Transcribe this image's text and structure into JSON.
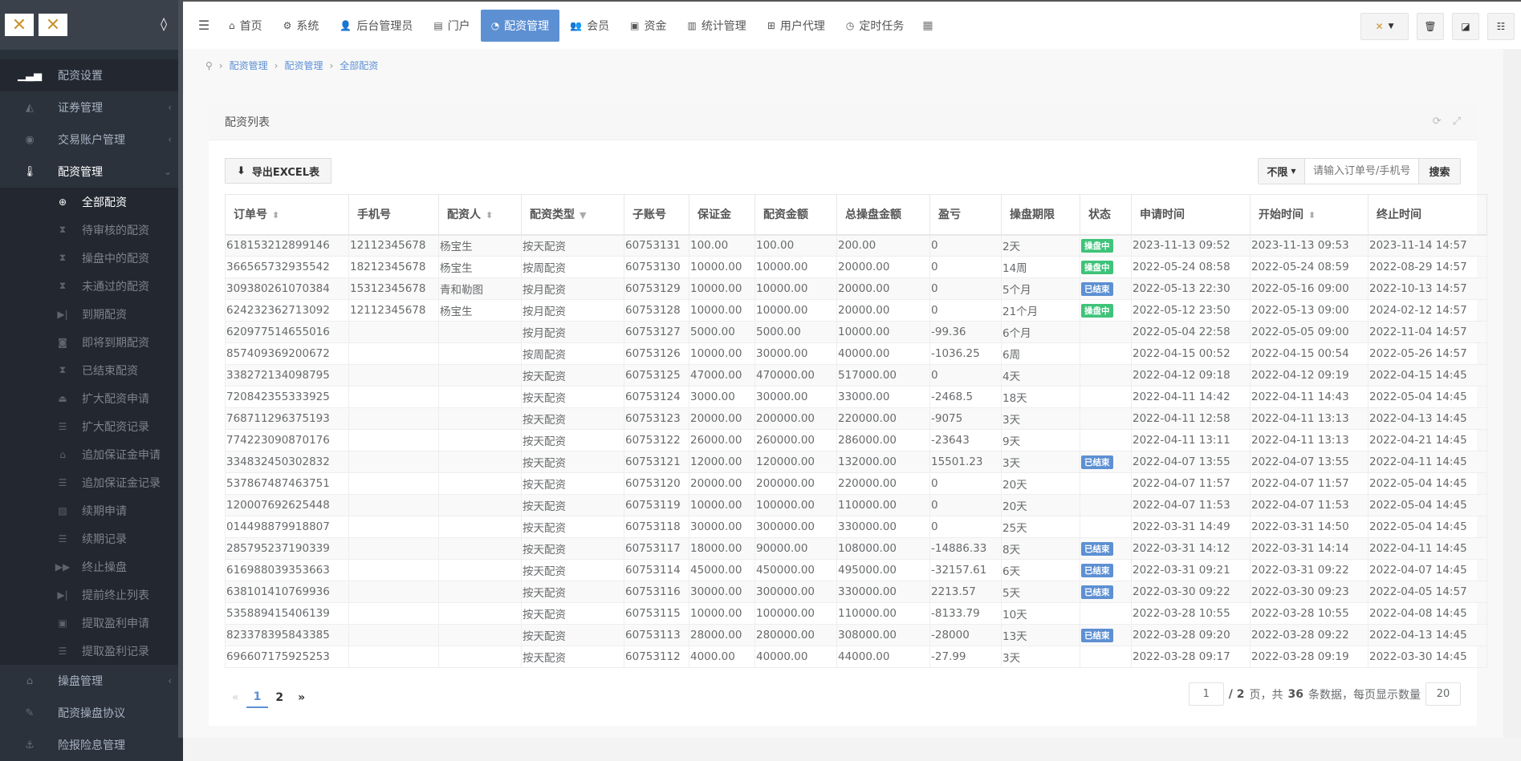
{
  "sidebar": {
    "top_items": [
      {
        "label": "配资设置",
        "icon": "signal-icon"
      },
      {
        "label": "证券管理",
        "icon": "area-chart-icon"
      },
      {
        "label": "交易账户管理",
        "icon": "user-circle-icon"
      },
      {
        "label": "配资管理",
        "icon": "thermometer-icon"
      }
    ],
    "sub_items": [
      {
        "label": "全部配资",
        "icon": "life-ring-icon"
      },
      {
        "label": "待审核的配资",
        "icon": "hourglass-icon"
      },
      {
        "label": "操盘中的配资",
        "icon": "hourglass-icon"
      },
      {
        "label": "未通过的配资",
        "icon": "hourglass-icon"
      },
      {
        "label": "到期配资",
        "icon": "step-forward-icon"
      },
      {
        "label": "即将到期配资",
        "icon": "camera-icon"
      },
      {
        "label": "已结束配资",
        "icon": "hourglass-icon"
      },
      {
        "label": "扩大配资申请",
        "icon": "upload-icon"
      },
      {
        "label": "扩大配资记录",
        "icon": "list-icon"
      },
      {
        "label": "追加保证金申请",
        "icon": "bank-icon"
      },
      {
        "label": "追加保证金记录",
        "icon": "list-icon"
      },
      {
        "label": "续期申请",
        "icon": "image-icon"
      },
      {
        "label": "续期记录",
        "icon": "list-icon"
      },
      {
        "label": "终止操盘",
        "icon": "fast-forward-icon"
      },
      {
        "label": "提前终止列表",
        "icon": "step-forward-icon"
      },
      {
        "label": "提取盈利申请",
        "icon": "save-icon"
      },
      {
        "label": "提取盈利记录",
        "icon": "list-icon"
      }
    ],
    "bottom_items": [
      {
        "label": "操盘管理",
        "icon": "bank-icon"
      },
      {
        "label": "配资操盘协议",
        "icon": "pencil-icon"
      },
      {
        "label": "险报险息管理",
        "icon": "anchor-icon"
      }
    ]
  },
  "topnav": [
    {
      "label": "首页",
      "icon": "home-icon"
    },
    {
      "label": "系统",
      "icon": "cog-icon"
    },
    {
      "label": "后台管理员",
      "icon": "user-icon"
    },
    {
      "label": "门户",
      "icon": "newspaper-icon"
    },
    {
      "label": "配资管理",
      "icon": "pie-chart-icon"
    },
    {
      "label": "会员",
      "icon": "users-icon"
    },
    {
      "label": "资金",
      "icon": "money-icon"
    },
    {
      "label": "统计管理",
      "icon": "bar-chart-icon"
    },
    {
      "label": "用户代理",
      "icon": "sitemap-icon"
    },
    {
      "label": "定时任务",
      "icon": "clock-icon"
    }
  ],
  "breadcrumb": [
    "配资管理",
    "配资管理",
    "全部配资"
  ],
  "panel": {
    "title": "配资列表",
    "export_label": "导出EXCEL表",
    "filter_value": "不限",
    "search_placeholder": "请输入订单号/手机号/",
    "search_label": "搜索"
  },
  "colors": {
    "accent": "#5d90d3",
    "running": "#3fc37a",
    "ended": "#5d90d3"
  },
  "table": {
    "columns": [
      "订单号",
      "手机号",
      "配资人",
      "配资类型",
      "子账号",
      "保证金",
      "配资金额",
      "总操盘金额",
      "盈亏",
      "操盘期限",
      "状态",
      "申请时间",
      "开始时间",
      "终止时间"
    ],
    "rows": [
      [
        "618153212899146",
        "12112345678",
        "杨宝生",
        "按天配资",
        "60753131",
        "100.00",
        "100.00",
        "200.00",
        "0",
        "2天",
        "操盘中",
        "2023-11-13 09:52",
        "2023-11-13 09:53",
        "2023-11-14 14:57"
      ],
      [
        "366565732935542",
        "18212345678",
        "杨宝生",
        "按周配资",
        "60753130",
        "10000.00",
        "10000.00",
        "20000.00",
        "0",
        "14周",
        "操盘中",
        "2022-05-24 08:58",
        "2022-05-24 08:59",
        "2022-08-29 14:57"
      ],
      [
        "309380261070384",
        "15312345678",
        "青和勒图",
        "按月配资",
        "60753129",
        "10000.00",
        "10000.00",
        "20000.00",
        "0",
        "5个月",
        "已结束",
        "2022-05-13 22:30",
        "2022-05-16 09:00",
        "2022-10-13 14:57"
      ],
      [
        "624232362713092",
        "12112345678",
        "杨宝生",
        "按月配资",
        "60753128",
        "10000.00",
        "10000.00",
        "20000.00",
        "0",
        "21个月",
        "操盘中",
        "2022-05-12 23:50",
        "2022-05-13 09:00",
        "2024-02-12 14:57"
      ],
      [
        "620977514655016",
        "",
        "",
        "按月配资",
        "60753127",
        "5000.00",
        "5000.00",
        "10000.00",
        "-99.36",
        "6个月",
        "",
        "2022-05-04 22:58",
        "2022-05-05 09:00",
        "2022-11-04 14:57"
      ],
      [
        "857409369200672",
        "",
        "",
        "按周配资",
        "60753126",
        "10000.00",
        "30000.00",
        "40000.00",
        "-1036.25",
        "6周",
        "",
        "2022-04-15 00:52",
        "2022-04-15 00:54",
        "2022-05-26 14:57"
      ],
      [
        "338272134098795",
        "",
        "",
        "按天配资",
        "60753125",
        "47000.00",
        "470000.00",
        "517000.00",
        "0",
        "4天",
        "",
        "2022-04-12 09:18",
        "2022-04-12 09:19",
        "2022-04-15 14:45"
      ],
      [
        "720842355333925",
        "",
        "",
        "按天配资",
        "60753124",
        "3000.00",
        "30000.00",
        "33000.00",
        "-2468.5",
        "18天",
        "",
        "2022-04-11 14:42",
        "2022-04-11 14:43",
        "2022-05-04 14:45"
      ],
      [
        "768711296375193",
        "",
        "",
        "按天配资",
        "60753123",
        "20000.00",
        "200000.00",
        "220000.00",
        "-9075",
        "3天",
        "",
        "2022-04-11 12:58",
        "2022-04-11 13:13",
        "2022-04-13 14:45"
      ],
      [
        "774223090870176",
        "",
        "",
        "按天配资",
        "60753122",
        "26000.00",
        "260000.00",
        "286000.00",
        "-23643",
        "9天",
        "",
        "2022-04-11 13:11",
        "2022-04-11 13:13",
        "2022-04-21 14:45"
      ],
      [
        "334832450302832",
        "",
        "",
        "按天配资",
        "60753121",
        "12000.00",
        "120000.00",
        "132000.00",
        "15501.23",
        "3天",
        "已结束",
        "2022-04-07 13:55",
        "2022-04-07 13:55",
        "2022-04-11 14:45"
      ],
      [
        "537867487463751",
        "",
        "",
        "按天配资",
        "60753120",
        "20000.00",
        "200000.00",
        "220000.00",
        "0",
        "20天",
        "",
        "2022-04-07 11:57",
        "2022-04-07 11:57",
        "2022-05-04 14:45"
      ],
      [
        "120007692625448",
        "",
        "",
        "按天配资",
        "60753119",
        "10000.00",
        "100000.00",
        "110000.00",
        "0",
        "20天",
        "",
        "2022-04-07 11:53",
        "2022-04-07 11:53",
        "2022-05-04 14:45"
      ],
      [
        "014498879918807",
        "",
        "",
        "按天配资",
        "60753118",
        "30000.00",
        "300000.00",
        "330000.00",
        "0",
        "25天",
        "",
        "2022-03-31 14:49",
        "2022-03-31 14:50",
        "2022-05-04 14:45"
      ],
      [
        "285795237190339",
        "",
        "",
        "按天配资",
        "60753117",
        "18000.00",
        "90000.00",
        "108000.00",
        "-14886.33",
        "8天",
        "已结束",
        "2022-03-31 14:12",
        "2022-03-31 14:14",
        "2022-04-11 14:45"
      ],
      [
        "616988039353663",
        "",
        "",
        "按天配资",
        "60753114",
        "45000.00",
        "450000.00",
        "495000.00",
        "-32157.61",
        "6天",
        "已结束",
        "2022-03-31 09:21",
        "2022-03-31 09:22",
        "2022-04-07 14:45"
      ],
      [
        "638101410769936",
        "",
        "",
        "按天配资",
        "60753116",
        "30000.00",
        "300000.00",
        "330000.00",
        "2213.57",
        "5天",
        "已结束",
        "2022-03-30 09:22",
        "2022-03-30 09:23",
        "2022-04-05 14:57"
      ],
      [
        "535889415406139",
        "",
        "",
        "按天配资",
        "60753115",
        "10000.00",
        "100000.00",
        "110000.00",
        "-8133.79",
        "10天",
        "",
        "2022-03-28 10:55",
        "2022-03-28 10:55",
        "2022-04-08 14:45"
      ],
      [
        "823378395843385",
        "",
        "",
        "按天配资",
        "60753113",
        "28000.00",
        "280000.00",
        "308000.00",
        "-28000",
        "13天",
        "已结束",
        "2022-03-28 09:20",
        "2022-03-28 09:22",
        "2022-04-13 14:45"
      ],
      [
        "696607175925253",
        "",
        "",
        "按天配资",
        "60753112",
        "4000.00",
        "40000.00",
        "44000.00",
        "-27.99",
        "3天",
        "",
        "2022-03-28 09:17",
        "2022-03-28 09:19",
        "2022-03-30 14:45"
      ]
    ]
  },
  "pagination": {
    "prev": "«",
    "pages": [
      "1",
      "2"
    ],
    "next": "»",
    "current_page": "1",
    "total_pages": "2",
    "total_records": "36",
    "page_size": "20",
    "text_pages": "页，共",
    "text_records": "条数据，每页显示数量"
  }
}
